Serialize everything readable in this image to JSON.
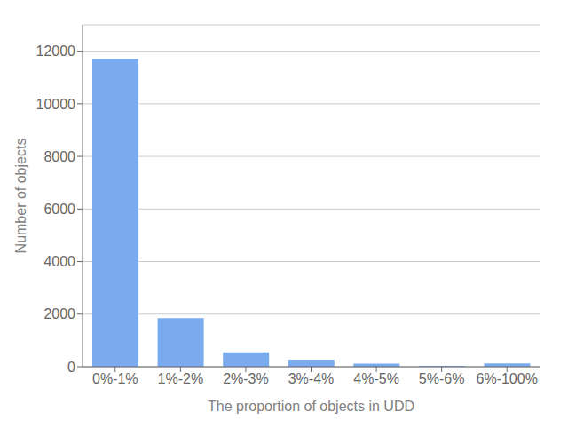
{
  "chart_data": {
    "type": "bar",
    "categories": [
      "0%-1%",
      "1%-2%",
      "2%-3%",
      "3%-4%",
      "4%-5%",
      "5%-6%",
      "6%-100%"
    ],
    "values": [
      11700,
      1850,
      550,
      270,
      120,
      30,
      130
    ],
    "color": "#7AABEE",
    "xlabel": "The proportion of objects in UDD",
    "ylabel": "Number of objects",
    "ylim": [
      0,
      13000
    ],
    "yticks": [
      0,
      2000,
      4000,
      6000,
      8000,
      10000,
      12000
    ],
    "grid": true
  }
}
